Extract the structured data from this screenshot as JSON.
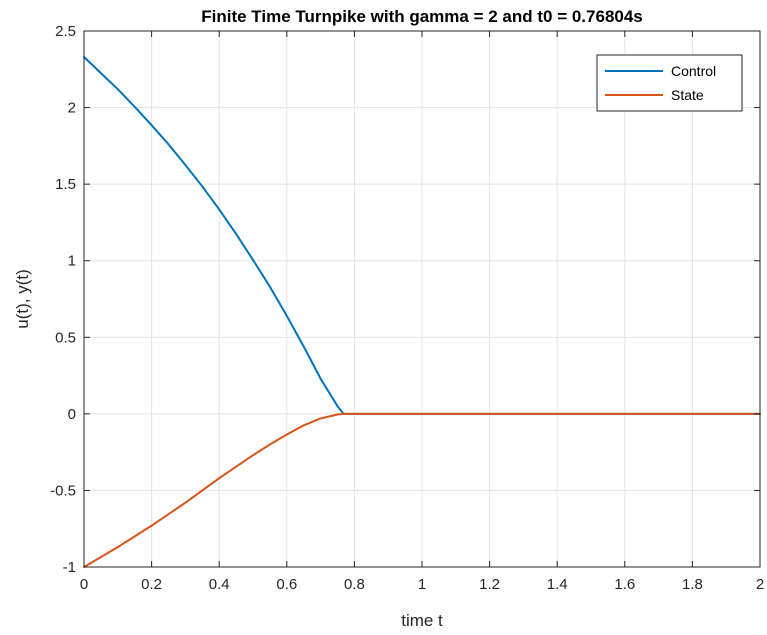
{
  "chart_data": {
    "type": "line",
    "title": "Finite Time Turnpike with gamma = 2 and t0 = 0.76804s",
    "xlabel": "time t",
    "ylabel": "u(t), y(t)",
    "xlim": [
      0,
      2
    ],
    "ylim": [
      -1,
      2.5
    ],
    "xticks": [
      0,
      0.2,
      0.4,
      0.6,
      0.8,
      1,
      1.2,
      1.4,
      1.6,
      1.8,
      2
    ],
    "xtick_labels": [
      "0",
      "0.2",
      "0.4",
      "0.6",
      "0.8",
      "1",
      "1.2",
      "1.4",
      "1.6",
      "1.8",
      "2"
    ],
    "yticks": [
      -1,
      -0.5,
      0,
      0.5,
      1,
      1.5,
      2,
      2.5
    ],
    "ytick_labels": [
      "-1",
      "-0.5",
      "0",
      "0.5",
      "1",
      "1.5",
      "2",
      "2.5"
    ],
    "grid": true,
    "legend_position": "top-right",
    "series": [
      {
        "name": "Control",
        "color": "#0072BD",
        "x": [
          0,
          0.05,
          0.1,
          0.15,
          0.2,
          0.25,
          0.3,
          0.35,
          0.4,
          0.45,
          0.5,
          0.55,
          0.6,
          0.65,
          0.7,
          0.75,
          0.768,
          0.8,
          1.0,
          1.2,
          1.4,
          1.6,
          1.8,
          2.0
        ],
        "y": [
          2.33,
          2.225,
          2.12,
          2.005,
          1.885,
          1.76,
          1.625,
          1.485,
          1.335,
          1.175,
          1.005,
          0.83,
          0.64,
          0.44,
          0.23,
          0.05,
          0,
          0,
          0,
          0,
          0,
          0,
          0,
          0
        ]
      },
      {
        "name": "State",
        "color": "#D95319",
        "x": [
          0,
          0.05,
          0.1,
          0.15,
          0.2,
          0.25,
          0.3,
          0.35,
          0.4,
          0.45,
          0.5,
          0.55,
          0.6,
          0.65,
          0.7,
          0.75,
          0.768,
          0.8,
          1.0,
          1.2,
          1.4,
          1.6,
          1.8,
          2.0
        ],
        "y": [
          -1,
          -0.935,
          -0.87,
          -0.8,
          -0.73,
          -0.655,
          -0.58,
          -0.5,
          -0.42,
          -0.345,
          -0.27,
          -0.2,
          -0.135,
          -0.075,
          -0.03,
          -0.004,
          0,
          0,
          0,
          0,
          0,
          0,
          0,
          0
        ]
      }
    ]
  }
}
